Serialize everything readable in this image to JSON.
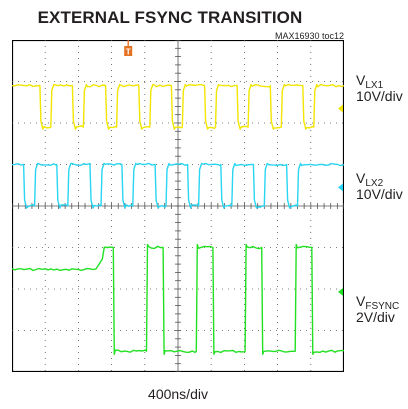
{
  "chart_data": {
    "type": "line",
    "title": "EXTERNAL FSYNC TRANSITION",
    "figure_id": "MAX16930 toc12",
    "xlabel": "400ns/div",
    "x_divisions": 10,
    "y_divisions": 8,
    "grid": true,
    "trigger_marker": "T",
    "colors": {
      "frame": "#000000",
      "grid": "#555555",
      "trigger": "#e37222"
    },
    "series": [
      {
        "key": "vlx1",
        "name_main": "V",
        "name_sub": "LX1",
        "scale": "10V/div",
        "color": "#f2e500",
        "low_div": 6.9,
        "high_div": 5.9,
        "pulses": [
          [
            0.84,
            1.17
          ],
          [
            1.82,
            2.15
          ],
          [
            2.82,
            3.15
          ],
          [
            3.82,
            4.15
          ],
          [
            4.8,
            5.13
          ],
          [
            5.8,
            6.13
          ],
          [
            6.78,
            7.11
          ],
          [
            7.78,
            8.11
          ],
          [
            8.76,
            9.09
          ]
        ]
      },
      {
        "key": "vlx2",
        "name_main": "V",
        "name_sub": "LX2",
        "scale": "10V/div",
        "color": "#29d5f2",
        "low_div": 5.0,
        "high_div": 4.0,
        "pulses": [
          [
            0.35,
            0.68
          ],
          [
            1.35,
            1.68
          ],
          [
            2.35,
            2.68
          ],
          [
            3.31,
            3.64
          ],
          [
            4.31,
            4.64
          ],
          [
            5.29,
            5.62
          ],
          [
            6.29,
            6.62
          ],
          [
            7.27,
            7.6
          ],
          [
            8.27,
            8.6
          ]
        ]
      },
      {
        "key": "vfsync",
        "name_main": "V",
        "name_sub": "FSYNC",
        "scale": "2V/div",
        "color": "#22e022",
        "low_div": 0.5,
        "high_div": 3.0,
        "idle_level_div": 2.72,
        "idle_until_div": 2.72,
        "first_edge_div": 3.05,
        "high_segments": [
          [
            2.72,
            3.05
          ],
          [
            4.05,
            4.55
          ],
          [
            5.55,
            6.05
          ],
          [
            7.02,
            7.52
          ],
          [
            8.53,
            9.03
          ]
        ]
      }
    ]
  }
}
